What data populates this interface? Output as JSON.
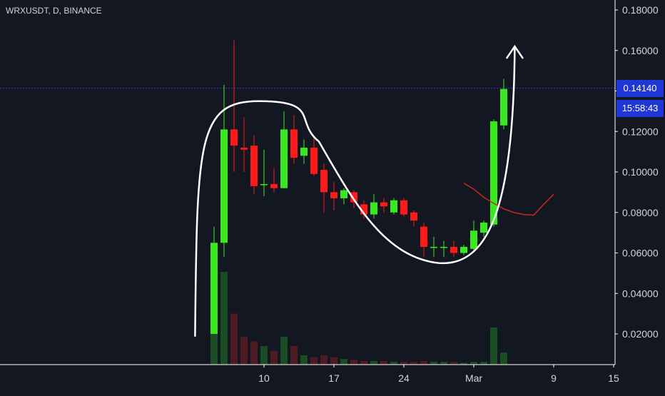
{
  "symbol": "WRXUSDT, D, BINANCE",
  "current_price": "0.14140",
  "countdown": "15:58:43",
  "colors": {
    "background": "#131722",
    "up": "#39e820",
    "down": "#ff1a1a",
    "volume_up": "#1b4d24",
    "volume_down": "#4d1b21",
    "price_line": "#2a3cbf",
    "badge": "#1f37d6",
    "ma": "#c7281f",
    "annotation": "#ffffff",
    "axis_text": "#d1d4dc"
  },
  "chart_data": {
    "type": "candlestick",
    "title": "",
    "xlabel": "",
    "ylabel": "",
    "ylim": [
      0,
      0.185
    ],
    "y_ticks": [
      "0.02000",
      "0.04000",
      "0.06000",
      "0.08000",
      "0.10000",
      "0.12000",
      "0.14000",
      "0.16000",
      "0.18000"
    ],
    "x_ticks": [
      {
        "label": "10",
        "day": 10
      },
      {
        "label": "17",
        "day": 17
      },
      {
        "label": "24",
        "day": 24
      },
      {
        "label": "Mar",
        "day": 31
      },
      {
        "label": "9",
        "day": 39
      },
      {
        "label": "15",
        "day": 45
      }
    ],
    "candles": [
      {
        "day": 5,
        "open": 0.02,
        "high": 0.073,
        "low": 0.02,
        "close": 0.065
      },
      {
        "day": 6,
        "open": 0.065,
        "high": 0.143,
        "low": 0.058,
        "close": 0.121
      },
      {
        "day": 7,
        "open": 0.121,
        "high": 0.165,
        "low": 0.1,
        "close": 0.113
      },
      {
        "day": 8,
        "open": 0.112,
        "high": 0.127,
        "low": 0.1,
        "close": 0.111
      },
      {
        "day": 9,
        "open": 0.113,
        "high": 0.118,
        "low": 0.089,
        "close": 0.093
      },
      {
        "day": 10,
        "open": 0.094,
        "high": 0.111,
        "low": 0.088,
        "close": 0.094
      },
      {
        "day": 11,
        "open": 0.094,
        "high": 0.102,
        "low": 0.09,
        "close": 0.092
      },
      {
        "day": 12,
        "open": 0.092,
        "high": 0.13,
        "low": 0.092,
        "close": 0.121
      },
      {
        "day": 13,
        "open": 0.121,
        "high": 0.128,
        "low": 0.104,
        "close": 0.107
      },
      {
        "day": 14,
        "open": 0.108,
        "high": 0.116,
        "low": 0.104,
        "close": 0.112
      },
      {
        "day": 15,
        "open": 0.112,
        "high": 0.117,
        "low": 0.098,
        "close": 0.099
      },
      {
        "day": 16,
        "open": 0.101,
        "high": 0.104,
        "low": 0.08,
        "close": 0.09
      },
      {
        "day": 17,
        "open": 0.09,
        "high": 0.095,
        "low": 0.081,
        "close": 0.087
      },
      {
        "day": 18,
        "open": 0.087,
        "high": 0.092,
        "low": 0.084,
        "close": 0.091
      },
      {
        "day": 19,
        "open": 0.09,
        "high": 0.091,
        "low": 0.082,
        "close": 0.085
      },
      {
        "day": 20,
        "open": 0.084,
        "high": 0.086,
        "low": 0.077,
        "close": 0.079
      },
      {
        "day": 21,
        "open": 0.079,
        "high": 0.089,
        "low": 0.077,
        "close": 0.085
      },
      {
        "day": 22,
        "open": 0.085,
        "high": 0.087,
        "low": 0.08,
        "close": 0.083
      },
      {
        "day": 23,
        "open": 0.08,
        "high": 0.087,
        "low": 0.079,
        "close": 0.086
      },
      {
        "day": 24,
        "open": 0.086,
        "high": 0.087,
        "low": 0.078,
        "close": 0.079
      },
      {
        "day": 25,
        "open": 0.08,
        "high": 0.081,
        "low": 0.073,
        "close": 0.076
      },
      {
        "day": 26,
        "open": 0.073,
        "high": 0.075,
        "low": 0.058,
        "close": 0.063
      },
      {
        "day": 27,
        "open": 0.063,
        "high": 0.068,
        "low": 0.058,
        "close": 0.063
      },
      {
        "day": 28,
        "open": 0.063,
        "high": 0.066,
        "low": 0.058,
        "close": 0.063
      },
      {
        "day": 29,
        "open": 0.063,
        "high": 0.066,
        "low": 0.058,
        "close": 0.06
      },
      {
        "day": 30,
        "open": 0.06,
        "high": 0.064,
        "low": 0.059,
        "close": 0.063
      },
      {
        "day": 31,
        "open": 0.062,
        "high": 0.076,
        "low": 0.061,
        "close": 0.071
      },
      {
        "day": 32,
        "open": 0.07,
        "high": 0.076,
        "low": 0.068,
        "close": 0.075
      },
      {
        "day": 33,
        "open": 0.074,
        "high": 0.126,
        "low": 0.073,
        "close": 0.125
      },
      {
        "day": 34,
        "open": 0.123,
        "high": 0.146,
        "low": 0.121,
        "close": 0.141
      }
    ],
    "volume": [
      {
        "day": 5,
        "value": 0.55
      },
      {
        "day": 6,
        "value": 1.0
      },
      {
        "day": 7,
        "value": 0.55
      },
      {
        "day": 8,
        "value": 0.3
      },
      {
        "day": 9,
        "value": 0.25
      },
      {
        "day": 10,
        "value": 0.2
      },
      {
        "day": 11,
        "value": 0.15
      },
      {
        "day": 12,
        "value": 0.3
      },
      {
        "day": 13,
        "value": 0.2
      },
      {
        "day": 14,
        "value": 0.1
      },
      {
        "day": 15,
        "value": 0.08
      },
      {
        "day": 16,
        "value": 0.1
      },
      {
        "day": 17,
        "value": 0.08
      },
      {
        "day": 18,
        "value": 0.06
      },
      {
        "day": 19,
        "value": 0.05
      },
      {
        "day": 20,
        "value": 0.04
      },
      {
        "day": 21,
        "value": 0.04
      },
      {
        "day": 22,
        "value": 0.04
      },
      {
        "day": 23,
        "value": 0.03
      },
      {
        "day": 24,
        "value": 0.03
      },
      {
        "day": 25,
        "value": 0.03
      },
      {
        "day": 26,
        "value": 0.04
      },
      {
        "day": 27,
        "value": 0.03
      },
      {
        "day": 28,
        "value": 0.03
      },
      {
        "day": 29,
        "value": 0.03
      },
      {
        "day": 30,
        "value": 0.02
      },
      {
        "day": 31,
        "value": 0.03
      },
      {
        "day": 32,
        "value": 0.03
      },
      {
        "day": 33,
        "value": 0.4
      },
      {
        "day": 34,
        "value": 0.13
      }
    ],
    "moving_average": [
      {
        "day": 30,
        "value": 0.0945
      },
      {
        "day": 31,
        "value": 0.0915
      },
      {
        "day": 32,
        "value": 0.0875
      },
      {
        "day": 33,
        "value": 0.0845
      },
      {
        "day": 34,
        "value": 0.0818
      },
      {
        "day": 35,
        "value": 0.08
      },
      {
        "day": 36,
        "value": 0.079
      },
      {
        "day": 37,
        "value": 0.0787
      },
      {
        "day": 38,
        "value": 0.084
      },
      {
        "day": 39,
        "value": 0.089
      }
    ],
    "annotation": {
      "type": "cup-arrow",
      "points": [
        {
          "day": 3.1,
          "value": 0.019
        },
        {
          "day": 3.3,
          "value": 0.115
        },
        {
          "day": 9.5,
          "value": 0.135
        },
        {
          "day": 15.5,
          "value": 0.115
        },
        {
          "day": 24.5,
          "value": 0.046
        },
        {
          "day": 33.5,
          "value": 0.048
        },
        {
          "day": 35.1,
          "value": 0.162
        }
      ]
    }
  }
}
